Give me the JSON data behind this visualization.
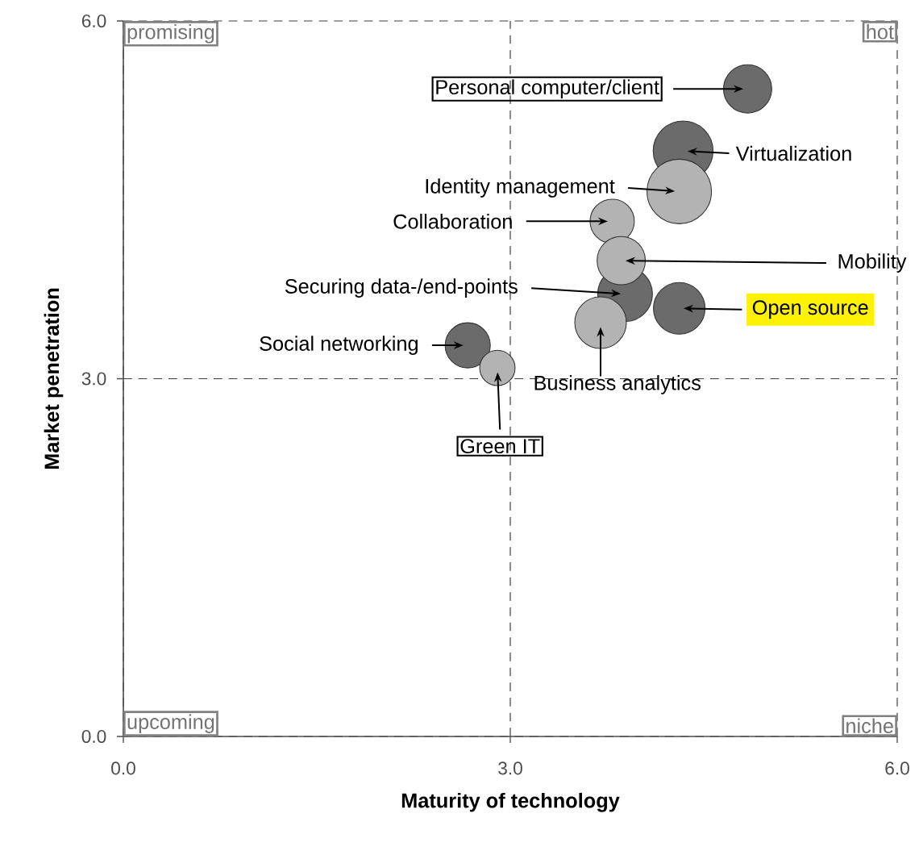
{
  "chart_data": {
    "type": "bubble",
    "xlabel": "Maturity of technology",
    "ylabel": "Market penetration",
    "xlim": [
      0,
      6
    ],
    "ylim": [
      0,
      6
    ],
    "xticks": [
      {
        "value": 0,
        "label": "0.0"
      },
      {
        "value": 3,
        "label": "3.0"
      },
      {
        "value": 6,
        "label": "6.0"
      }
    ],
    "yticks": [
      {
        "value": 0,
        "label": "0.0"
      },
      {
        "value": 3,
        "label": "3.0"
      },
      {
        "value": 6,
        "label": "6.0"
      }
    ],
    "grid": true,
    "marker": "circle",
    "series": [
      {
        "color": "#6b6b6b",
        "x": [
          4.84,
          4.34,
          3.89,
          4.31,
          2.67
        ],
        "values": [
          5.43,
          4.91,
          3.71,
          3.59,
          3.28
        ],
        "sizes": [
          0.56,
          0.86,
          0.72,
          0.64,
          0.49
        ]
      },
      {
        "color": "#b3b3b3",
        "x": [
          4.31,
          3.79,
          3.86,
          3.7,
          2.9
        ],
        "values": [
          4.57,
          4.32,
          3.99,
          3.47,
          3.09
        ],
        "sizes": [
          1,
          0.47,
          0.56,
          0.64,
          0.3
        ]
      }
    ],
    "annotations": [
      "promising",
      "hot",
      "upcoming",
      "niche",
      "Personal computer/client",
      "Virtualization",
      "Identity management",
      "Collaboration",
      "Mobility",
      "Securing data-/end-points",
      "Open source",
      "Business analytics",
      "Social networking",
      "Green IT"
    ]
  }
}
